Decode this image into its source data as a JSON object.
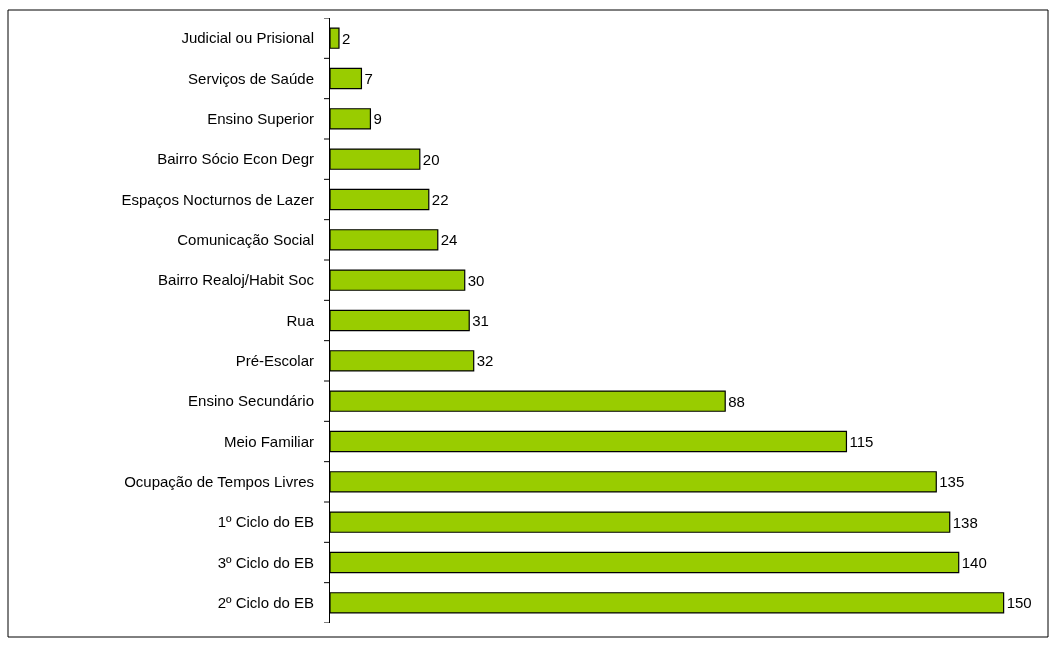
{
  "chart_data": {
    "type": "bar",
    "orientation": "horizontal",
    "categories": [
      "Judicial ou Prisional",
      "Serviços de Saúde",
      "Ensino Superior",
      "Bairro Sócio Econ Degr",
      "Espaços Nocturnos de Lazer",
      "Comunicação Social",
      "Bairro Realoj/Habit Soc",
      "Rua",
      "Pré-Escolar",
      "Ensino Secundário",
      "Meio Familiar",
      "Ocupação de Tempos Livres",
      "1º Ciclo do EB",
      "3º Ciclo do EB",
      "2º Ciclo do EB"
    ],
    "values": [
      2,
      7,
      9,
      20,
      22,
      24,
      30,
      31,
      32,
      88,
      115,
      135,
      138,
      140,
      150
    ],
    "color": "#99cc00",
    "data_labels": true
  }
}
